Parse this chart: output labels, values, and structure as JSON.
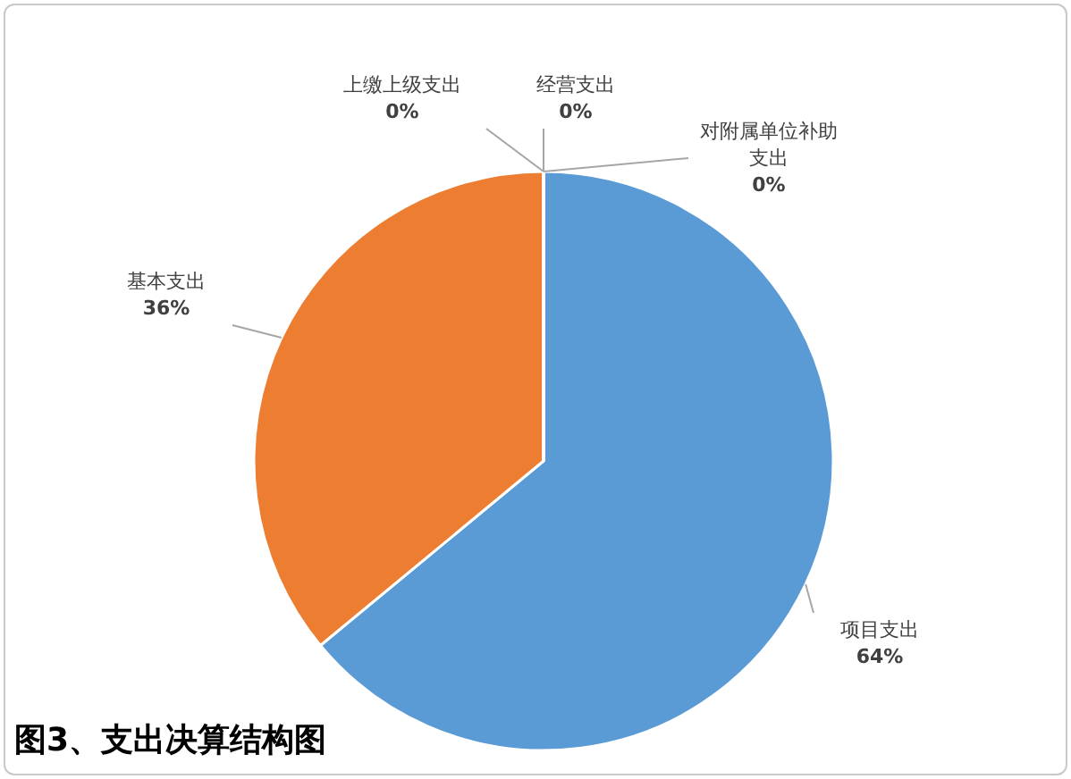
{
  "chart_data": {
    "type": "pie",
    "title": "图3、支出决算结构图",
    "categories": [
      "项目支出",
      "基本支出",
      "上缴上级支出",
      "经营支出",
      "对附属单位补助支出"
    ],
    "values": [
      64,
      36,
      0,
      0,
      0
    ],
    "colors": [
      "#5b9bd5",
      "#ed7d31",
      "#a5a5a5",
      "#ffc000",
      "#4472c4"
    ],
    "value_labels": [
      "64%",
      "36%",
      "0%",
      "0%",
      "0%"
    ]
  }
}
